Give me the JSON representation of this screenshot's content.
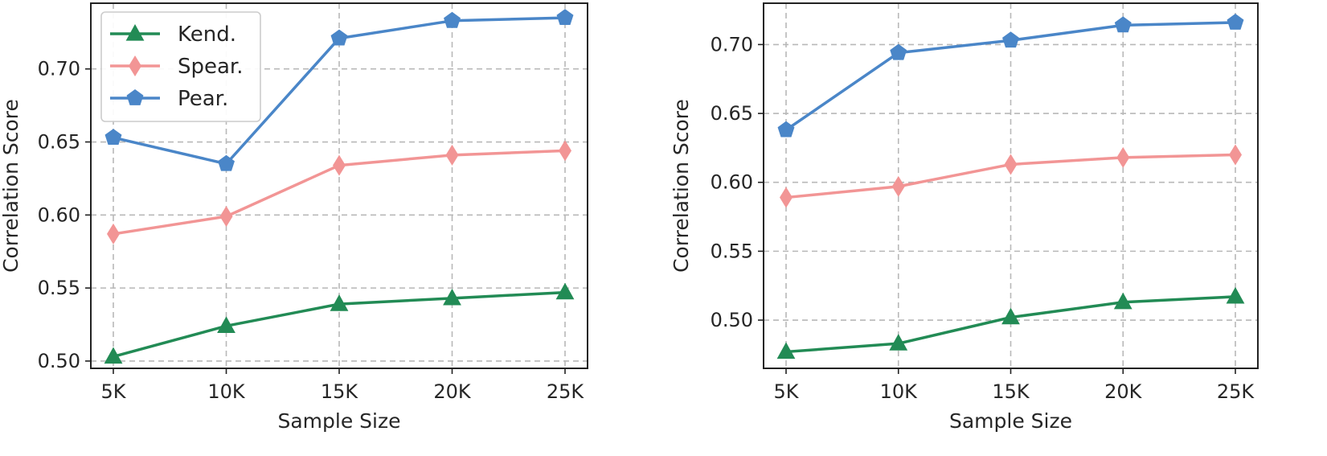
{
  "chart_data": [
    {
      "type": "line",
      "title": "",
      "xlabel": "Sample Size",
      "ylabel": "Correlation Score",
      "categories": [
        "5K",
        "10K",
        "15K",
        "20K",
        "25K"
      ],
      "ylim": [
        0.495,
        0.745
      ],
      "yticks": [
        0.5,
        0.55,
        0.6,
        0.65,
        0.7
      ],
      "ytick_labels": [
        "0.50",
        "0.55",
        "0.60",
        "0.65",
        "0.70"
      ],
      "grid": true,
      "legend": "top-left",
      "series": [
        {
          "name": "Kend.",
          "color": "#228B55",
          "marker": "triangle",
          "values": [
            0.503,
            0.524,
            0.539,
            0.543,
            0.547
          ]
        },
        {
          "name": "Spear.",
          "color": "#F29595",
          "marker": "diamond",
          "values": [
            0.587,
            0.599,
            0.634,
            0.641,
            0.644
          ]
        },
        {
          "name": "Pear.",
          "color": "#4A86C8",
          "marker": "pentagon",
          "values": [
            0.653,
            0.635,
            0.721,
            0.733,
            0.735
          ]
        }
      ]
    },
    {
      "type": "line",
      "title": "",
      "xlabel": "Sample Size",
      "ylabel": "Correlation Score",
      "categories": [
        "5K",
        "10K",
        "15K",
        "20K",
        "25K"
      ],
      "ylim": [
        0.465,
        0.73
      ],
      "yticks": [
        0.5,
        0.55,
        0.6,
        0.65,
        0.7
      ],
      "ytick_labels": [
        "0.50",
        "0.55",
        "0.60",
        "0.65",
        "0.70"
      ],
      "grid": true,
      "legend": "none",
      "series": [
        {
          "name": "Kend.",
          "color": "#228B55",
          "marker": "triangle",
          "values": [
            0.477,
            0.483,
            0.502,
            0.513,
            0.517
          ]
        },
        {
          "name": "Spear.",
          "color": "#F29595",
          "marker": "diamond",
          "values": [
            0.589,
            0.597,
            0.613,
            0.618,
            0.62
          ]
        },
        {
          "name": "Pear.",
          "color": "#4A86C8",
          "marker": "pentagon",
          "values": [
            0.638,
            0.694,
            0.703,
            0.714,
            0.716
          ]
        }
      ]
    }
  ]
}
